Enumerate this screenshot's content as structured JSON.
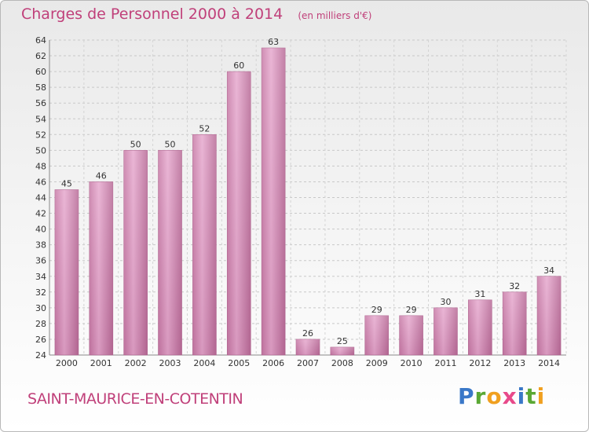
{
  "header": {
    "title": "Charges de Personnel 2000 à 2014",
    "subtitle": "(en milliers d'€)"
  },
  "footer": {
    "commune": "SAINT-MAURICE-EN-COTENTIN",
    "logo": "Proxiti"
  },
  "colors": {
    "bar": "#d98ab7",
    "bar_light": "#e6a9ce",
    "bar_dark": "#b86b97",
    "title": "#c0407a"
  },
  "chart_data": {
    "type": "bar",
    "title": "Charges de Personnel 2000 à 2014",
    "subtitle": "(en milliers d'€)",
    "categories": [
      "2000",
      "2001",
      "2002",
      "2003",
      "2004",
      "2005",
      "2006",
      "2007",
      "2008",
      "2009",
      "2010",
      "2011",
      "2012",
      "2013",
      "2014"
    ],
    "values": [
      45,
      46,
      50,
      50,
      52,
      60,
      63,
      26,
      25,
      29,
      29,
      30,
      31,
      32,
      34
    ],
    "ylim": [
      24,
      64
    ],
    "yticks": [
      24,
      26,
      28,
      30,
      32,
      34,
      36,
      38,
      40,
      42,
      44,
      46,
      48,
      50,
      52,
      54,
      56,
      58,
      60,
      62,
      64
    ],
    "grid": true,
    "legend": "none"
  }
}
